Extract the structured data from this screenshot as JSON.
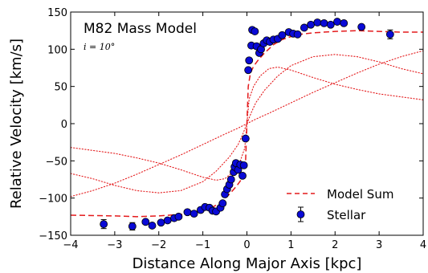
{
  "chart_data": {
    "type": "scatter",
    "title": "",
    "xlabel": "Distance Along Major Axis [kpc]",
    "ylabel": "Relative Velocity [km/s]",
    "xlim": [
      -4,
      4
    ],
    "ylim": [
      -150,
      150
    ],
    "xticks": [
      "−4",
      "−3",
      "−2",
      "−1",
      "0",
      "1",
      "2",
      "3",
      "4"
    ],
    "yticks": [
      "−150",
      "−100",
      "−50",
      "0",
      "50",
      "100",
      "150"
    ],
    "grid": false,
    "legend_position": "bottom-right",
    "annotation_title": "M82 Mass Model",
    "annotation_sub": "i = 10°",
    "colors": {
      "marker_fill": "#0a0ad6",
      "marker_edge": "#000000",
      "model_line": "#e41a1c",
      "component_line": "#e41a1c"
    },
    "series": [
      {
        "name": "Stellar",
        "kind": "points",
        "points": [
          {
            "x": -3.25,
            "y": -135,
            "err": 6
          },
          {
            "x": -2.6,
            "y": -138,
            "err": 5
          },
          {
            "x": -2.3,
            "y": -132
          },
          {
            "x": -2.15,
            "y": -137
          },
          {
            "x": -1.95,
            "y": -133
          },
          {
            "x": -1.8,
            "y": -130
          },
          {
            "x": -1.65,
            "y": -127
          },
          {
            "x": -1.55,
            "y": -125
          },
          {
            "x": -1.35,
            "y": -119
          },
          {
            "x": -1.2,
            "y": -121
          },
          {
            "x": -1.05,
            "y": -116
          },
          {
            "x": -0.95,
            "y": -112
          },
          {
            "x": -0.85,
            "y": -113
          },
          {
            "x": -0.78,
            "y": -117
          },
          {
            "x": -0.7,
            "y": -118
          },
          {
            "x": -0.6,
            "y": -113
          },
          {
            "x": -0.55,
            "y": -107
          },
          {
            "x": -0.5,
            "y": -95
          },
          {
            "x": -0.45,
            "y": -88
          },
          {
            "x": -0.4,
            "y": -82
          },
          {
            "x": -0.36,
            "y": -75
          },
          {
            "x": -0.3,
            "y": -65
          },
          {
            "x": -0.28,
            "y": -58
          },
          {
            "x": -0.25,
            "y": -53
          },
          {
            "x": -0.2,
            "y": -62
          },
          {
            "x": -0.15,
            "y": -55
          },
          {
            "x": -0.1,
            "y": -70
          },
          {
            "x": -0.07,
            "y": -56
          },
          {
            "x": -0.03,
            "y": -20
          },
          {
            "x": 0.03,
            "y": 72
          },
          {
            "x": 0.05,
            "y": 85
          },
          {
            "x": 0.1,
            "y": 105
          },
          {
            "x": 0.12,
            "y": 126
          },
          {
            "x": 0.18,
            "y": 124
          },
          {
            "x": 0.22,
            "y": 104
          },
          {
            "x": 0.28,
            "y": 95
          },
          {
            "x": 0.32,
            "y": 100
          },
          {
            "x": 0.38,
            "y": 108
          },
          {
            "x": 0.45,
            "y": 112
          },
          {
            "x": 0.52,
            "y": 110
          },
          {
            "x": 0.6,
            "y": 113
          },
          {
            "x": 0.7,
            "y": 114
          },
          {
            "x": 0.8,
            "y": 119
          },
          {
            "x": 0.95,
            "y": 123
          },
          {
            "x": 1.05,
            "y": 121
          },
          {
            "x": 1.15,
            "y": 120
          },
          {
            "x": 1.3,
            "y": 129
          },
          {
            "x": 1.45,
            "y": 133
          },
          {
            "x": 1.6,
            "y": 136
          },
          {
            "x": 1.75,
            "y": 135
          },
          {
            "x": 1.9,
            "y": 133
          },
          {
            "x": 2.05,
            "y": 137
          },
          {
            "x": 2.2,
            "y": 135
          },
          {
            "x": 2.6,
            "y": 130
          },
          {
            "x": 3.25,
            "y": 120,
            "err": 6
          }
        ]
      },
      {
        "name": "Model Sum",
        "kind": "line",
        "style": "dashed",
        "x": [
          -4,
          -3,
          -2.5,
          -2,
          -1.5,
          -1.2,
          -1,
          -0.8,
          -0.6,
          -0.4,
          -0.25,
          -0.15,
          -0.08,
          -0.03,
          0,
          0.03,
          0.08,
          0.15,
          0.25,
          0.4,
          0.6,
          0.8,
          1,
          1.2,
          1.5,
          2,
          2.5,
          3,
          3.5,
          4
        ],
        "y": [
          -123,
          -124,
          -125,
          -124,
          -122,
          -120,
          -117,
          -113,
          -106,
          -95,
          -85,
          -77,
          -68,
          -50,
          0,
          50,
          68,
          77,
          85,
          95,
          106,
          113,
          117,
          120,
          122,
          124,
          125,
          124,
          123,
          123
        ]
      },
      {
        "kind": "line",
        "style": "dotted",
        "x": [
          -4,
          -3.5,
          -3,
          -2.5,
          -2,
          -1.5,
          -1,
          -0.7,
          -0.5,
          -0.3,
          -0.15,
          -0.05,
          0,
          0.05,
          0.15,
          0.3,
          0.5,
          0.7,
          1,
          1.5,
          2,
          2.5,
          3,
          3.5,
          4
        ],
        "y": [
          -32,
          -36,
          -40,
          -46,
          -53,
          -62,
          -72,
          -76,
          -74,
          -64,
          -50,
          -33,
          0,
          33,
          50,
          64,
          74,
          76,
          72,
          62,
          53,
          46,
          40,
          36,
          32
        ]
      },
      {
        "kind": "line",
        "style": "dotted",
        "x": [
          -4,
          -3.5,
          -3,
          -2.5,
          -2,
          -1.5,
          -1,
          -0.7,
          -0.4,
          -0.2,
          -0.1,
          0,
          0.1,
          0.2,
          0.4,
          0.7,
          1,
          1.5,
          2,
          2.5,
          3,
          3.5,
          4
        ],
        "y": [
          -67,
          -74,
          -83,
          -90,
          -93,
          -90,
          -78,
          -64,
          -45,
          -28,
          -15,
          0,
          15,
          28,
          45,
          64,
          78,
          90,
          93,
          90,
          83,
          74,
          67
        ]
      },
      {
        "kind": "line",
        "style": "dotted",
        "x": [
          -4,
          -3.5,
          -3,
          -2.5,
          -2,
          -1.5,
          -1,
          -0.5,
          -0.2,
          0,
          0.2,
          0.5,
          1,
          1.5,
          2,
          2.5,
          3,
          3.5,
          4
        ],
        "y": [
          -98,
          -90,
          -80,
          -68,
          -55,
          -42,
          -28,
          -14,
          -6,
          0,
          6,
          14,
          28,
          42,
          55,
          68,
          80,
          90,
          98
        ]
      }
    ]
  }
}
